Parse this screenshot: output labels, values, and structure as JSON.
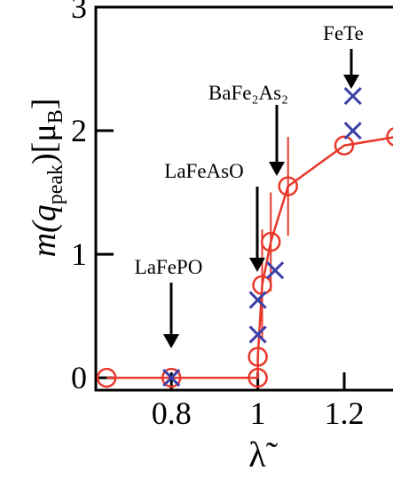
{
  "chart_data": {
    "type": "line",
    "xlabel": "λ̃",
    "ylabel_parts": [
      "m(q",
      "peak",
      ")[μ",
      "B",
      "]"
    ],
    "xlim": [
      0.625,
      1.315
    ],
    "ylim": [
      -0.1,
      3
    ],
    "xticks": [
      {
        "value": 0.8,
        "label": "0.8"
      },
      1,
      {
        "value": 1.2,
        "label": "1.2"
      }
    ],
    "yticks": [
      0,
      1,
      2,
      3
    ],
    "series": [
      {
        "color": "#e8382b",
        "marker": "circle",
        "x": [
          0.65,
          0.8,
          1.0,
          1.0,
          1.01,
          1.03,
          1.07,
          1.2,
          1.32
        ],
        "values": [
          0,
          0,
          0,
          0.17,
          0.75,
          1.1,
          1.55,
          1.88,
          1.95
        ],
        "errors": [
          null,
          null,
          null,
          null,
          0.45,
          0.4,
          0.4,
          null,
          null
        ]
      },
      {
        "color": "#3b3fa8",
        "marker": "x",
        "x": [
          0.8,
          1.0,
          1.0,
          1.04,
          1.22,
          1.22
        ],
        "values": [
          0,
          0.35,
          0.63,
          0.87,
          2.0,
          2.28
        ]
      }
    ],
    "annotations": [
      "FeTe",
      "BaFe₂As₂",
      "LaFeAsO",
      "LaFePO"
    ]
  }
}
